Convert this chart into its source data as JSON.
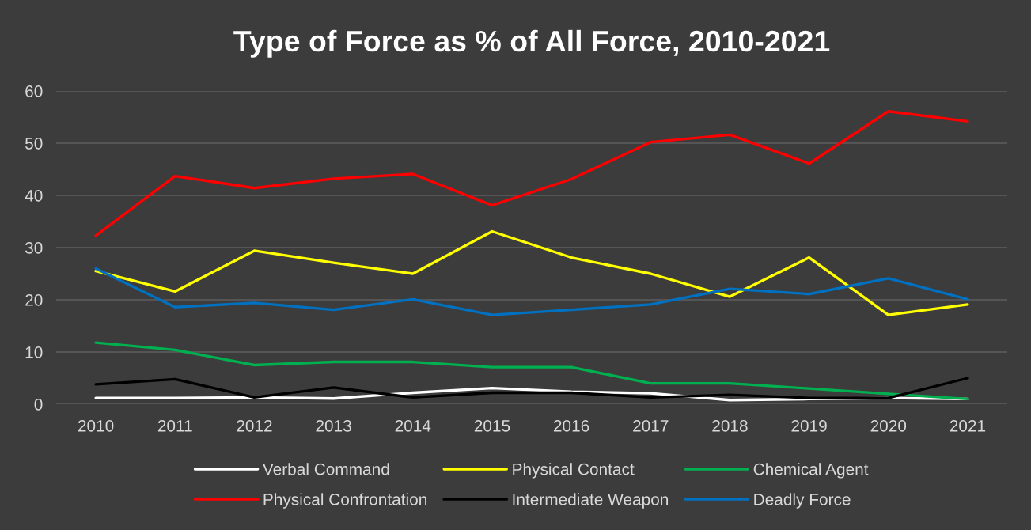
{
  "chart_data": {
    "type": "line",
    "title": "Type of Force as % of All Force, 2010-2021",
    "categories": [
      "2010",
      "2011",
      "2012",
      "2013",
      "2014",
      "2015",
      "2016",
      "2017",
      "2018",
      "2019",
      "2020",
      "2021"
    ],
    "series": [
      {
        "name": "Verbal Command",
        "color": "#ffffff",
        "values": [
          1.2,
          1.2,
          1.3,
          1.1,
          2.2,
          3.1,
          2.4,
          2.1,
          0.8,
          1.0,
          1.2,
          1.0
        ]
      },
      {
        "name": "Physical Contact",
        "color": "#ffff00",
        "values": [
          25.5,
          21.6,
          29.4,
          27.1,
          25.0,
          33.1,
          28.1,
          25.0,
          20.6,
          28.1,
          17.1,
          19.1
        ]
      },
      {
        "name": "Chemical Agent",
        "color": "#00b050",
        "values": [
          11.8,
          10.4,
          7.5,
          8.1,
          8.1,
          7.1,
          7.1,
          4.0,
          4.0,
          3.0,
          2.0,
          1.0
        ]
      },
      {
        "name": "Physical Confrontation",
        "color": "#ff0000",
        "values": [
          32.3,
          43.7,
          41.4,
          43.2,
          44.1,
          38.1,
          43.1,
          50.2,
          51.6,
          46.1,
          56.1,
          54.2
        ]
      },
      {
        "name": "Intermediate Weapon",
        "color": "#000000",
        "values": [
          3.8,
          4.8,
          1.3,
          3.2,
          1.3,
          2.2,
          2.2,
          1.3,
          1.8,
          1.2,
          1.2,
          5.0
        ]
      },
      {
        "name": "Deadly Force",
        "color": "#0070c0",
        "values": [
          26.0,
          18.6,
          19.4,
          18.1,
          20.1,
          17.1,
          18.1,
          19.1,
          22.1,
          21.1,
          24.1,
          20.1
        ]
      }
    ],
    "ylim": [
      0,
      60
    ],
    "yticks": [
      0,
      10,
      20,
      30,
      40,
      50,
      60
    ],
    "grid": "y",
    "legend": "bottom",
    "marker": "none",
    "line_style": "solid"
  }
}
